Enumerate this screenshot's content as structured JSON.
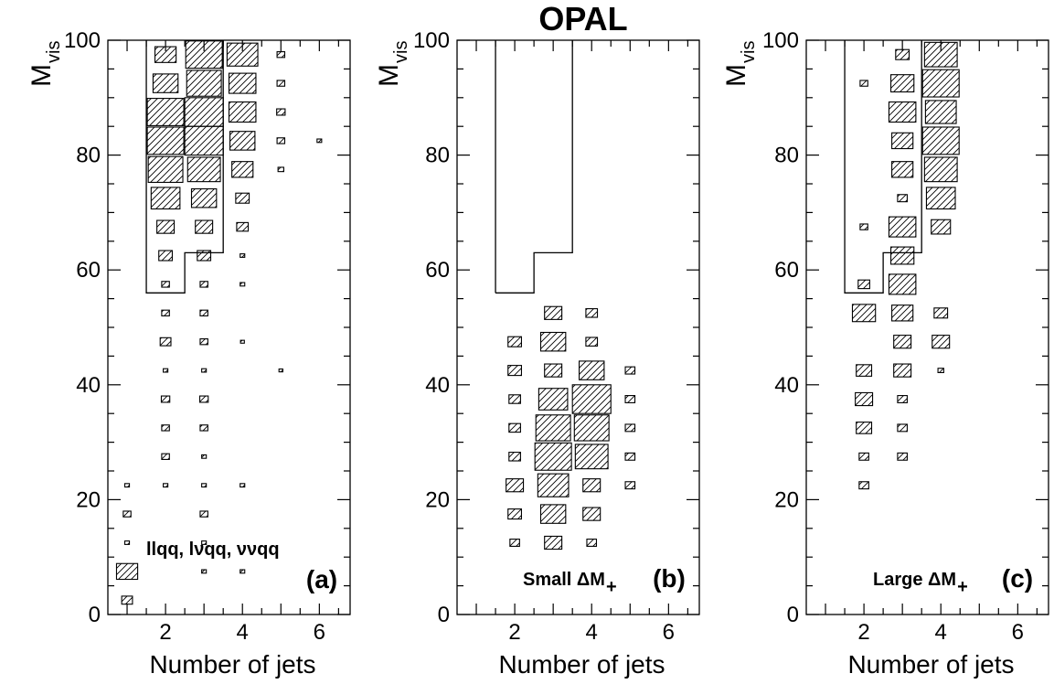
{
  "figure_title": "OPAL",
  "chart_data": [
    {
      "type": "box",
      "panel_label": "(a)",
      "annotation": "llqq, lνqq, ννqq",
      "xlabel": "Number of jets",
      "ylabel_main": "M",
      "ylabel_sub": "vis",
      "xlim": [
        0.5,
        6.8
      ],
      "ylim": [
        0,
        100
      ],
      "xticks": [
        2,
        4,
        6
      ],
      "yticks": [
        0,
        20,
        40,
        60,
        80,
        100
      ],
      "bin_width_x": 1,
      "bin_width_y": 5,
      "bins": [
        {
          "x": 1,
          "y": 2.5,
          "s": 0.28
        },
        {
          "x": 1,
          "y": 7.5,
          "s": 0.55
        },
        {
          "x": 1,
          "y": 12.5,
          "s": 0.12
        },
        {
          "x": 1,
          "y": 17.5,
          "s": 0.2
        },
        {
          "x": 1,
          "y": 22.5,
          "s": 0.12
        },
        {
          "x": 2,
          "y": 22.5,
          "s": 0.12
        },
        {
          "x": 2,
          "y": 27.5,
          "s": 0.2
        },
        {
          "x": 2,
          "y": 32.5,
          "s": 0.2
        },
        {
          "x": 2,
          "y": 37.5,
          "s": 0.22
        },
        {
          "x": 2,
          "y": 42.5,
          "s": 0.12
        },
        {
          "x": 2,
          "y": 47.5,
          "s": 0.28
        },
        {
          "x": 2,
          "y": 52.5,
          "s": 0.2
        },
        {
          "x": 2,
          "y": 57.5,
          "s": 0.2
        },
        {
          "x": 2,
          "y": 62.5,
          "s": 0.35
        },
        {
          "x": 2,
          "y": 67.5,
          "s": 0.45
        },
        {
          "x": 2,
          "y": 72.5,
          "s": 0.75
        },
        {
          "x": 2,
          "y": 77.5,
          "s": 0.9
        },
        {
          "x": 2,
          "y": 82.5,
          "s": 0.95
        },
        {
          "x": 2,
          "y": 87.5,
          "s": 0.95
        },
        {
          "x": 2,
          "y": 92.5,
          "s": 0.65
        },
        {
          "x": 2,
          "y": 97.5,
          "s": 0.55
        },
        {
          "x": 3,
          "y": 7.5,
          "s": 0.12
        },
        {
          "x": 3,
          "y": 12.5,
          "s": 0.12
        },
        {
          "x": 3,
          "y": 17.5,
          "s": 0.2
        },
        {
          "x": 3,
          "y": 22.5,
          "s": 0.12
        },
        {
          "x": 3,
          "y": 27.5,
          "s": 0.12
        },
        {
          "x": 3,
          "y": 32.5,
          "s": 0.2
        },
        {
          "x": 3,
          "y": 37.5,
          "s": 0.22
        },
        {
          "x": 3,
          "y": 42.5,
          "s": 0.12
        },
        {
          "x": 3,
          "y": 47.5,
          "s": 0.2
        },
        {
          "x": 3,
          "y": 52.5,
          "s": 0.2
        },
        {
          "x": 3,
          "y": 57.5,
          "s": 0.2
        },
        {
          "x": 3,
          "y": 62.5,
          "s": 0.35
        },
        {
          "x": 3,
          "y": 67.5,
          "s": 0.45
        },
        {
          "x": 3,
          "y": 72.5,
          "s": 0.65
        },
        {
          "x": 3,
          "y": 77.5,
          "s": 0.85
        },
        {
          "x": 3,
          "y": 82.5,
          "s": 1.0
        },
        {
          "x": 3,
          "y": 87.5,
          "s": 1.0
        },
        {
          "x": 3,
          "y": 92.5,
          "s": 0.9
        },
        {
          "x": 3,
          "y": 97.5,
          "s": 0.95
        },
        {
          "x": 4,
          "y": 7.5,
          "s": 0.12
        },
        {
          "x": 4,
          "y": 22.5,
          "s": 0.12
        },
        {
          "x": 4,
          "y": 47.5,
          "s": 0.1
        },
        {
          "x": 4,
          "y": 57.5,
          "s": 0.12
        },
        {
          "x": 4,
          "y": 62.5,
          "s": 0.12
        },
        {
          "x": 4,
          "y": 67.5,
          "s": 0.3
        },
        {
          "x": 4,
          "y": 72.5,
          "s": 0.35
        },
        {
          "x": 4,
          "y": 77.5,
          "s": 0.55
        },
        {
          "x": 4,
          "y": 82.5,
          "s": 0.65
        },
        {
          "x": 4,
          "y": 87.5,
          "s": 0.7
        },
        {
          "x": 4,
          "y": 92.5,
          "s": 0.7
        },
        {
          "x": 4,
          "y": 97.5,
          "s": 0.8
        },
        {
          "x": 5,
          "y": 42.5,
          "s": 0.1
        },
        {
          "x": 5,
          "y": 77.5,
          "s": 0.15
        },
        {
          "x": 5,
          "y": 82.5,
          "s": 0.2
        },
        {
          "x": 5,
          "y": 87.5,
          "s": 0.22
        },
        {
          "x": 5,
          "y": 92.5,
          "s": 0.2
        },
        {
          "x": 5,
          "y": 97.5,
          "s": 0.2
        },
        {
          "x": 6,
          "y": 82.5,
          "s": 0.12
        }
      ],
      "cut_outline": [
        [
          1.5,
          100
        ],
        [
          1.5,
          56
        ],
        [
          2.5,
          56
        ],
        [
          2.5,
          63
        ],
        [
          3.5,
          63
        ],
        [
          3.5,
          100
        ]
      ]
    },
    {
      "type": "box",
      "panel_label": "(b)",
      "annotation": "Small ΔM",
      "annotation_sub": "+",
      "xlabel": "Number of jets",
      "ylabel_main": "M",
      "ylabel_sub": "vis",
      "xlim": [
        0.5,
        6.8
      ],
      "ylim": [
        0,
        100
      ],
      "xticks": [
        2,
        4,
        6
      ],
      "yticks": [
        0,
        20,
        40,
        60,
        80,
        100
      ],
      "bin_width_x": 1,
      "bin_width_y": 5,
      "bins": [
        {
          "x": 2,
          "y": 12.5,
          "s": 0.25
        },
        {
          "x": 2,
          "y": 17.5,
          "s": 0.35
        },
        {
          "x": 2,
          "y": 22.5,
          "s": 0.45
        },
        {
          "x": 2,
          "y": 27.5,
          "s": 0.3
        },
        {
          "x": 2,
          "y": 32.5,
          "s": 0.3
        },
        {
          "x": 2,
          "y": 37.5,
          "s": 0.3
        },
        {
          "x": 2,
          "y": 42.5,
          "s": 0.35
        },
        {
          "x": 2,
          "y": 47.5,
          "s": 0.35
        },
        {
          "x": 3,
          "y": 12.5,
          "s": 0.45
        },
        {
          "x": 3,
          "y": 17.5,
          "s": 0.65
        },
        {
          "x": 3,
          "y": 22.5,
          "s": 0.8
        },
        {
          "x": 3,
          "y": 27.5,
          "s": 0.95
        },
        {
          "x": 3,
          "y": 32.5,
          "s": 0.9
        },
        {
          "x": 3,
          "y": 37.5,
          "s": 0.75
        },
        {
          "x": 3,
          "y": 42.5,
          "s": 0.45
        },
        {
          "x": 3,
          "y": 47.5,
          "s": 0.65
        },
        {
          "x": 3,
          "y": 52.5,
          "s": 0.45
        },
        {
          "x": 4,
          "y": 12.5,
          "s": 0.25
        },
        {
          "x": 4,
          "y": 17.5,
          "s": 0.45
        },
        {
          "x": 4,
          "y": 22.5,
          "s": 0.45
        },
        {
          "x": 4,
          "y": 27.5,
          "s": 0.85
        },
        {
          "x": 4,
          "y": 32.5,
          "s": 0.9
        },
        {
          "x": 4,
          "y": 37.5,
          "s": 1.0
        },
        {
          "x": 4,
          "y": 42.5,
          "s": 0.65
        },
        {
          "x": 4,
          "y": 47.5,
          "s": 0.3
        },
        {
          "x": 4,
          "y": 52.5,
          "s": 0.3
        },
        {
          "x": 5,
          "y": 22.5,
          "s": 0.25
        },
        {
          "x": 5,
          "y": 27.5,
          "s": 0.25
        },
        {
          "x": 5,
          "y": 32.5,
          "s": 0.25
        },
        {
          "x": 5,
          "y": 37.5,
          "s": 0.25
        },
        {
          "x": 5,
          "y": 42.5,
          "s": 0.25
        }
      ],
      "cut_outline": [
        [
          1.5,
          56
        ],
        [
          2.5,
          56
        ],
        [
          2.5,
          63
        ],
        [
          3.5,
          63
        ],
        [
          3.5,
          100
        ]
      ],
      "cut_outline_left": [
        [
          1.5,
          56
        ],
        [
          1.5,
          100
        ]
      ]
    },
    {
      "type": "box",
      "panel_label": "(c)",
      "annotation": "Large ΔM",
      "annotation_sub": "+",
      "xlabel": "Number of jets",
      "ylabel_main": "M",
      "ylabel_sub": "vis",
      "xlim": [
        0.5,
        6.8
      ],
      "ylim": [
        0,
        100
      ],
      "xticks": [
        2,
        4,
        6
      ],
      "yticks": [
        0,
        20,
        40,
        60,
        80,
        100
      ],
      "bin_width_x": 1,
      "bin_width_y": 5,
      "bins": [
        {
          "x": 2,
          "y": 22.5,
          "s": 0.25
        },
        {
          "x": 2,
          "y": 27.5,
          "s": 0.25
        },
        {
          "x": 2,
          "y": 32.5,
          "s": 0.4
        },
        {
          "x": 2,
          "y": 37.5,
          "s": 0.45
        },
        {
          "x": 2,
          "y": 42.5,
          "s": 0.4
        },
        {
          "x": 2,
          "y": 52.5,
          "s": 0.6
        },
        {
          "x": 2,
          "y": 57.5,
          "s": 0.3
        },
        {
          "x": 2,
          "y": 67.5,
          "s": 0.2
        },
        {
          "x": 2,
          "y": 92.5,
          "s": 0.2
        },
        {
          "x": 3,
          "y": 27.5,
          "s": 0.25
        },
        {
          "x": 3,
          "y": 32.5,
          "s": 0.25
        },
        {
          "x": 3,
          "y": 37.5,
          "s": 0.25
        },
        {
          "x": 3,
          "y": 42.5,
          "s": 0.45
        },
        {
          "x": 3,
          "y": 47.5,
          "s": 0.45
        },
        {
          "x": 3,
          "y": 52.5,
          "s": 0.55
        },
        {
          "x": 3,
          "y": 57.5,
          "s": 0.7
        },
        {
          "x": 3,
          "y": 62.5,
          "s": 0.6
        },
        {
          "x": 3,
          "y": 67.5,
          "s": 0.7
        },
        {
          "x": 3,
          "y": 72.5,
          "s": 0.25
        },
        {
          "x": 3,
          "y": 77.5,
          "s": 0.55
        },
        {
          "x": 3,
          "y": 82.5,
          "s": 0.55
        },
        {
          "x": 3,
          "y": 87.5,
          "s": 0.7
        },
        {
          "x": 3,
          "y": 92.5,
          "s": 0.6
        },
        {
          "x": 3,
          "y": 97.5,
          "s": 0.35
        },
        {
          "x": 4,
          "y": 42.5,
          "s": 0.15
        },
        {
          "x": 4,
          "y": 47.5,
          "s": 0.45
        },
        {
          "x": 4,
          "y": 52.5,
          "s": 0.35
        },
        {
          "x": 4,
          "y": 67.5,
          "s": 0.5
        },
        {
          "x": 4,
          "y": 72.5,
          "s": 0.75
        },
        {
          "x": 4,
          "y": 77.5,
          "s": 0.85
        },
        {
          "x": 4,
          "y": 82.5,
          "s": 0.95
        },
        {
          "x": 4,
          "y": 87.5,
          "s": 0.8
        },
        {
          "x": 4,
          "y": 92.5,
          "s": 0.95
        },
        {
          "x": 4,
          "y": 97.5,
          "s": 0.85
        }
      ],
      "cut_outline": [
        [
          1.5,
          100
        ],
        [
          1.5,
          56
        ],
        [
          2.5,
          56
        ],
        [
          2.5,
          63
        ],
        [
          3.5,
          63
        ],
        [
          3.5,
          100
        ]
      ]
    }
  ]
}
